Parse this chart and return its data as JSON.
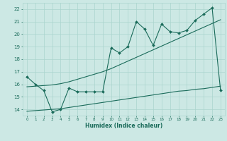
{
  "title": "",
  "xlabel": "Humidex (Indice chaleur)",
  "bg_color": "#cce8e4",
  "grid_color": "#aad4ce",
  "line_color": "#1a6b5a",
  "xlim": [
    -0.5,
    23.5
  ],
  "ylim": [
    13.5,
    22.5
  ],
  "xticks": [
    0,
    1,
    2,
    3,
    4,
    5,
    6,
    7,
    8,
    9,
    10,
    11,
    12,
    13,
    14,
    15,
    16,
    17,
    18,
    19,
    20,
    21,
    22,
    23
  ],
  "yticks": [
    14,
    15,
    16,
    17,
    18,
    19,
    20,
    21,
    22
  ],
  "line1_x": [
    0,
    1,
    2,
    3,
    4,
    5,
    6,
    7,
    8,
    9,
    10,
    11,
    12,
    13,
    14,
    15,
    16,
    17,
    18,
    19,
    20,
    21,
    22,
    23
  ],
  "line1_y": [
    16.6,
    16.0,
    15.5,
    13.8,
    14.0,
    15.7,
    15.4,
    15.4,
    15.4,
    15.4,
    18.9,
    18.5,
    19.0,
    21.0,
    20.4,
    19.1,
    20.8,
    20.2,
    20.1,
    20.3,
    21.1,
    21.6,
    22.1,
    15.5
  ],
  "line2_x": [
    0,
    1,
    2,
    3,
    4,
    5,
    6,
    7,
    8,
    9,
    10,
    11,
    12,
    13,
    14,
    15,
    16,
    17,
    18,
    19,
    20,
    21,
    22,
    23
  ],
  "line2_y": [
    15.8,
    15.85,
    15.9,
    15.95,
    16.05,
    16.2,
    16.4,
    16.6,
    16.8,
    17.0,
    17.25,
    17.55,
    17.85,
    18.15,
    18.45,
    18.75,
    19.05,
    19.35,
    19.65,
    19.95,
    20.25,
    20.55,
    20.85,
    21.15
  ],
  "line3_x": [
    0,
    1,
    2,
    3,
    4,
    5,
    6,
    7,
    8,
    9,
    10,
    11,
    12,
    13,
    14,
    15,
    16,
    17,
    18,
    19,
    20,
    21,
    22,
    23
  ],
  "line3_y": [
    13.85,
    13.9,
    13.95,
    14.0,
    14.05,
    14.15,
    14.25,
    14.35,
    14.45,
    14.55,
    14.65,
    14.75,
    14.85,
    14.95,
    15.05,
    15.15,
    15.25,
    15.35,
    15.45,
    15.5,
    15.6,
    15.65,
    15.75,
    15.85
  ]
}
